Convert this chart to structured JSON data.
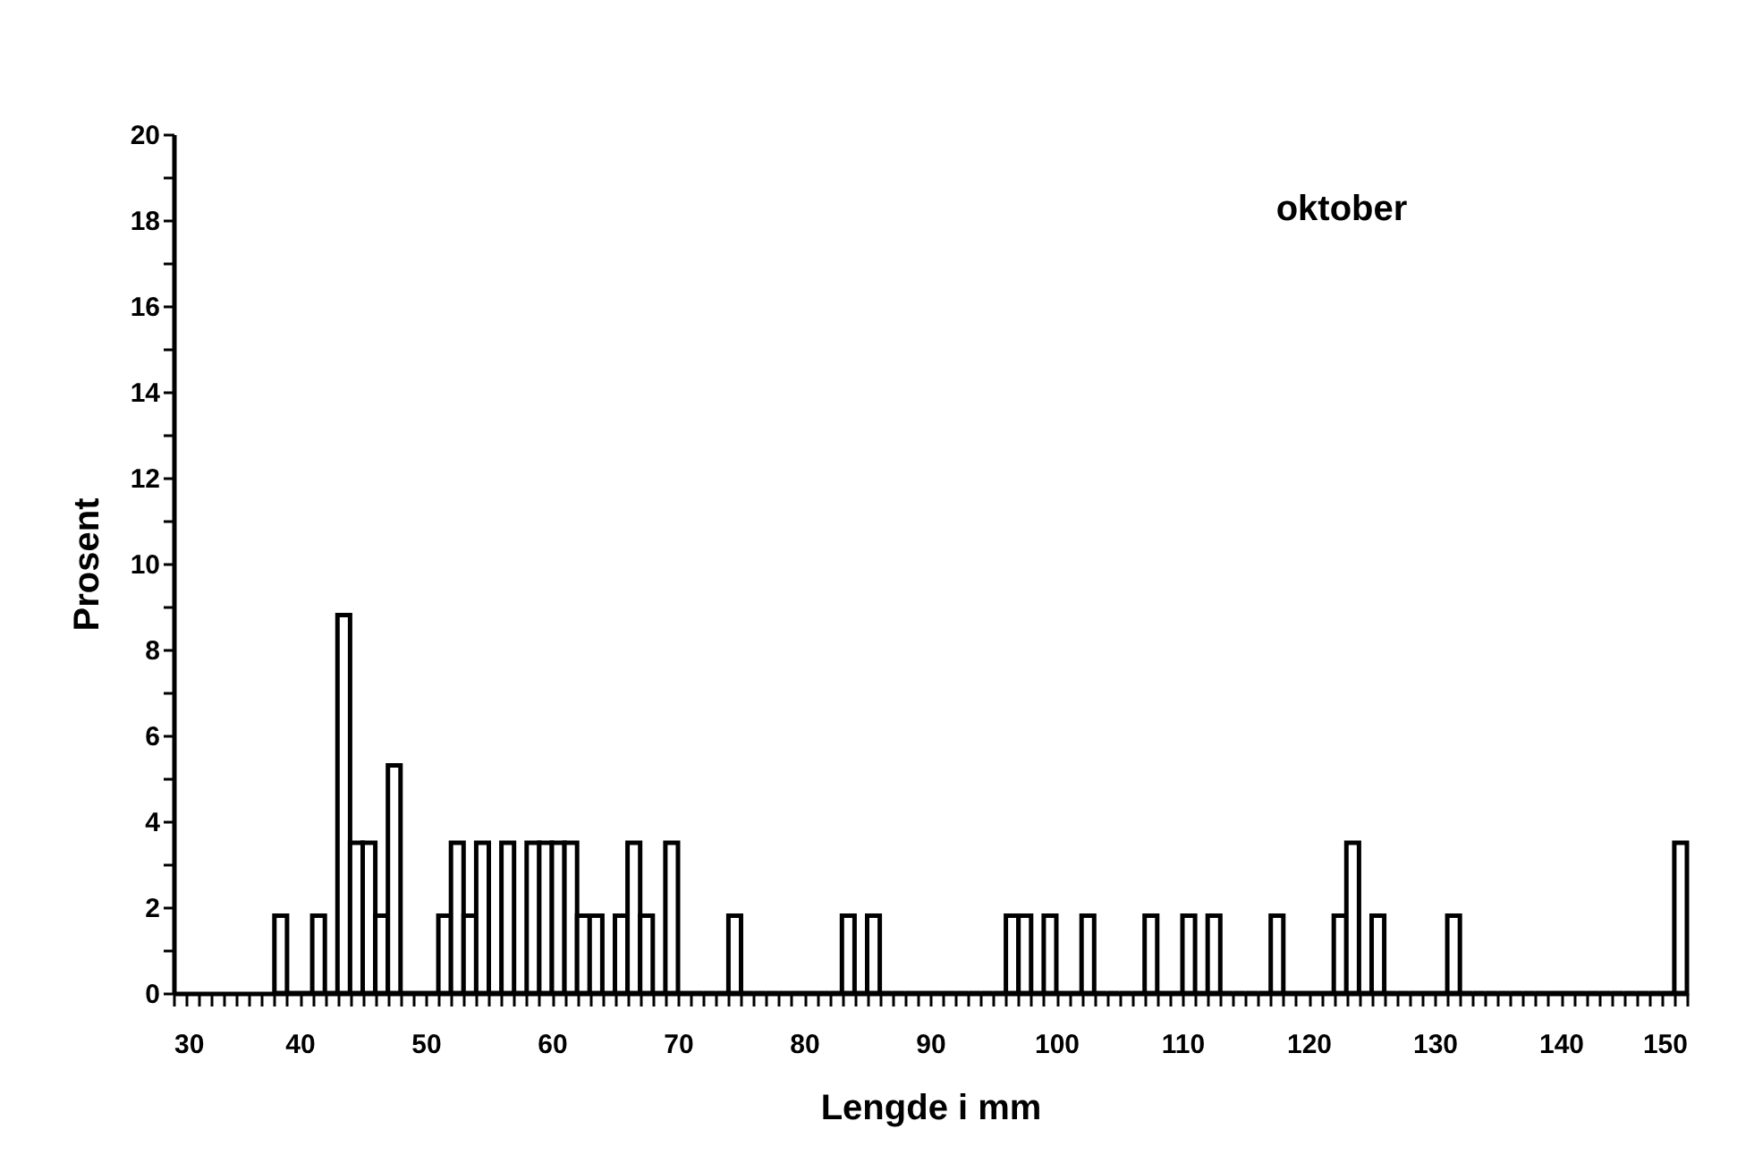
{
  "chart_data": {
    "type": "histogram",
    "xlabel": "Lengde i mm",
    "ylabel": "Prosent",
    "annotations": [
      "oktober"
    ],
    "bins": [
      38,
      39,
      40,
      41,
      42,
      43,
      44,
      45,
      46,
      47,
      48,
      49,
      50,
      51,
      52,
      53,
      54,
      55,
      56,
      57,
      58,
      59,
      60,
      61,
      62,
      63,
      64,
      65,
      66,
      67,
      68,
      69,
      70,
      71,
      72,
      73,
      74,
      75,
      76,
      77,
      78,
      79,
      80,
      81,
      82,
      83,
      84,
      85,
      86,
      87,
      88,
      89,
      90,
      91,
      92,
      93,
      94,
      95,
      96,
      97,
      98,
      99,
      100,
      101,
      102,
      103,
      104,
      105,
      106,
      107,
      108,
      109,
      110,
      111,
      112,
      113,
      114,
      115,
      116,
      117,
      118,
      119,
      120,
      121,
      122,
      123,
      124,
      125,
      126,
      127,
      128,
      129,
      130,
      131,
      132,
      133,
      134,
      135,
      136,
      137,
      138,
      139,
      140,
      141,
      142,
      143,
      144,
      145,
      146,
      147,
      148,
      149,
      150
    ],
    "values": [
      1.8,
      0,
      0,
      1.8,
      0,
      8.8,
      3.5,
      3.5,
      1.8,
      5.3,
      0,
      0,
      0,
      1.8,
      3.5,
      1.8,
      3.5,
      0,
      3.5,
      0,
      3.5,
      3.5,
      3.5,
      3.5,
      1.8,
      1.8,
      0,
      1.8,
      3.5,
      1.8,
      0,
      3.5,
      0,
      0,
      0,
      0,
      1.8,
      0,
      0,
      0,
      0,
      0,
      0,
      0,
      0,
      1.8,
      0,
      1.8,
      0,
      0,
      0,
      0,
      0,
      0,
      0,
      0,
      0,
      0,
      1.8,
      1.8,
      0,
      1.8,
      0,
      0,
      1.8,
      0,
      0,
      0,
      0,
      1.8,
      0,
      0,
      1.8,
      0,
      1.8,
      0,
      0,
      0,
      0,
      1.8,
      0,
      0,
      0,
      0,
      1.8,
      3.5,
      0,
      1.8,
      0,
      0,
      0,
      0,
      0,
      1.8,
      0,
      0,
      0,
      0,
      0,
      0,
      0,
      0,
      0,
      0,
      0,
      0,
      0,
      0,
      0,
      0,
      0,
      3.5
    ],
    "color": "#ffffff",
    "xlim": [
      30,
      150
    ],
    "xticks": [
      30,
      {
        "value": 31,
        "label": null
      },
      {
        "value": 32,
        "label": null
      },
      {
        "value": 33,
        "label": null
      },
      {
        "value": 34,
        "label": null
      },
      {
        "value": 35,
        "label": null
      },
      {
        "value": 36,
        "label": null
      },
      {
        "value": 37,
        "label": null
      },
      {
        "value": 38,
        "label": null
      },
      {
        "value": 39,
        "label": null
      },
      40,
      {
        "value": 41,
        "label": null
      },
      {
        "value": 42,
        "label": null
      },
      {
        "value": 43,
        "label": null
      },
      {
        "value": 44,
        "label": null
      },
      {
        "value": 45,
        "label": null
      },
      {
        "value": 46,
        "label": null
      },
      {
        "value": 47,
        "label": null
      },
      {
        "value": 48,
        "label": null
      },
      {
        "value": 49,
        "label": null
      },
      50,
      {
        "value": 51,
        "label": null
      },
      {
        "value": 52,
        "label": null
      },
      {
        "value": 53,
        "label": null
      },
      {
        "value": 54,
        "label": null
      },
      {
        "value": 55,
        "label": null
      },
      {
        "value": 56,
        "label": null
      },
      {
        "value": 57,
        "label": null
      },
      {
        "value": 58,
        "label": null
      },
      {
        "value": 59,
        "label": null
      },
      60,
      {
        "value": 61,
        "label": null
      },
      {
        "value": 62,
        "label": null
      },
      {
        "value": 63,
        "label": null
      },
      {
        "value": 64,
        "label": null
      },
      {
        "value": 65,
        "label": null
      },
      {
        "value": 66,
        "label": null
      },
      {
        "value": 67,
        "label": null
      },
      {
        "value": 68,
        "label": null
      },
      {
        "value": 69,
        "label": null
      },
      70,
      {
        "value": 71,
        "label": null
      },
      {
        "value": 72,
        "label": null
      },
      {
        "value": 73,
        "label": null
      },
      {
        "value": 74,
        "label": null
      },
      {
        "value": 75,
        "label": null
      },
      {
        "value": 76,
        "label": null
      },
      {
        "value": 77,
        "label": null
      },
      {
        "value": 78,
        "label": null
      },
      {
        "value": 79,
        "label": null
      },
      80,
      {
        "value": 81,
        "label": null
      },
      {
        "value": 82,
        "label": null
      },
      {
        "value": 83,
        "label": null
      },
      {
        "value": 84,
        "label": null
      },
      {
        "value": 85,
        "label": null
      },
      {
        "value": 86,
        "label": null
      },
      {
        "value": 87,
        "label": null
      },
      {
        "value": 88,
        "label": null
      },
      {
        "value": 89,
        "label": null
      },
      90,
      {
        "value": 91,
        "label": null
      },
      {
        "value": 92,
        "label": null
      },
      {
        "value": 93,
        "label": null
      },
      {
        "value": 94,
        "label": null
      },
      {
        "value": 95,
        "label": null
      },
      {
        "value": 96,
        "label": null
      },
      {
        "value": 97,
        "label": null
      },
      {
        "value": 98,
        "label": null
      },
      {
        "value": 99,
        "label": null
      },
      100,
      {
        "value": 101,
        "label": null
      },
      {
        "value": 102,
        "label": null
      },
      {
        "value": 103,
        "label": null
      },
      {
        "value": 104,
        "label": null
      },
      {
        "value": 105,
        "label": null
      },
      {
        "value": 106,
        "label": null
      },
      {
        "value": 107,
        "label": null
      },
      {
        "value": 108,
        "label": null
      },
      {
        "value": 109,
        "label": null
      },
      110,
      {
        "value": 111,
        "label": null
      },
      {
        "value": 112,
        "label": null
      },
      {
        "value": 113,
        "label": null
      },
      {
        "value": 114,
        "label": null
      },
      {
        "value": 115,
        "label": null
      },
      {
        "value": 116,
        "label": null
      },
      {
        "value": 117,
        "label": null
      },
      {
        "value": 118,
        "label": null
      },
      {
        "value": 119,
        "label": null
      },
      120,
      {
        "value": 121,
        "label": null
      },
      {
        "value": 122,
        "label": null
      },
      {
        "value": 123,
        "label": null
      },
      {
        "value": 124,
        "label": null
      },
      {
        "value": 125,
        "label": null
      },
      {
        "value": 126,
        "label": null
      },
      {
        "value": 127,
        "label": null
      },
      {
        "value": 128,
        "label": null
      },
      {
        "value": 129,
        "label": null
      },
      130,
      {
        "value": 131,
        "label": null
      },
      {
        "value": 132,
        "label": null
      },
      {
        "value": 133,
        "label": null
      },
      {
        "value": 134,
        "label": null
      },
      {
        "value": 135,
        "label": null
      },
      {
        "value": 136,
        "label": null
      },
      {
        "value": 137,
        "label": null
      },
      {
        "value": 138,
        "label": null
      },
      {
        "value": 139,
        "label": null
      },
      140,
      {
        "value": 141,
        "label": null
      },
      {
        "value": 142,
        "label": null
      },
      {
        "value": 143,
        "label": null
      },
      {
        "value": 144,
        "label": null
      },
      {
        "value": 145,
        "label": null
      },
      {
        "value": 146,
        "label": null
      },
      {
        "value": 147,
        "label": null
      },
      {
        "value": 148,
        "label": null
      },
      {
        "value": 149,
        "label": null
      },
      150
    ],
    "ylim": [
      0,
      20
    ],
    "yticks": [
      0,
      {
        "value": 1,
        "label": null
      },
      2,
      {
        "value": 3,
        "label": null
      },
      4,
      {
        "value": 5,
        "label": null
      },
      6,
      {
        "value": 7,
        "label": null
      },
      8,
      {
        "value": 9,
        "label": null
      },
      10,
      {
        "value": 11,
        "label": null
      },
      12,
      {
        "value": 13,
        "label": null
      },
      14,
      {
        "value": 15,
        "label": null
      },
      16,
      {
        "value": 17,
        "label": null
      },
      18,
      {
        "value": 19,
        "label": null
      },
      20
    ],
    "grid": false
  }
}
